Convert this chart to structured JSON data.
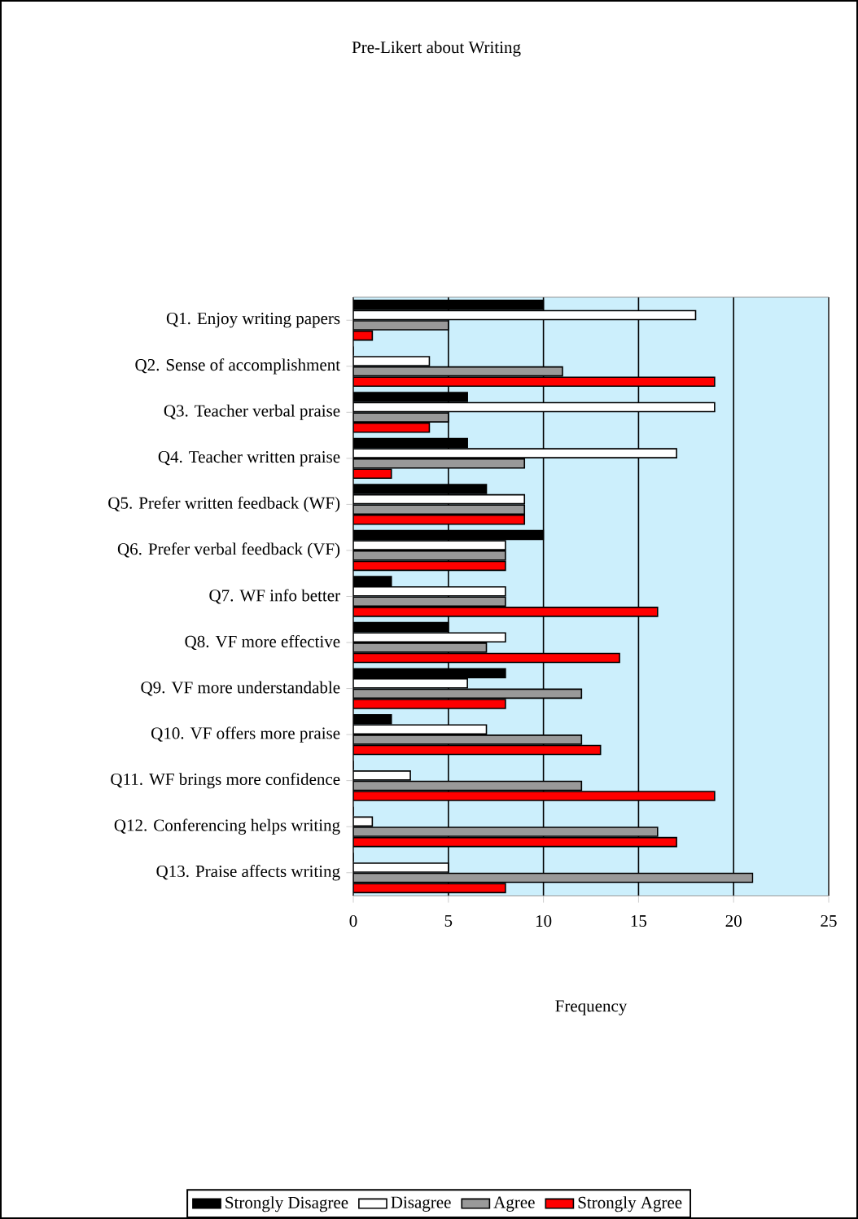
{
  "chart_data": {
    "type": "bar",
    "orientation": "horizontal",
    "title": "Pre-Likert about Writing",
    "xlabel": "Frequency",
    "categories": [
      "Q1. Enjoy writing papers",
      "Q2. Sense of accomplishment",
      "Q3. Teacher verbal praise",
      "Q4. Teacher written praise",
      "Q5. Prefer written feedback (WF)",
      "Q6. Prefer verbal feedback (VF)",
      "Q7. WF info better",
      "Q8. VF more effective",
      "Q9. VF more understandable",
      "Q10. VF offers more praise",
      "Q11. WF brings more confidence",
      "Q12. Conferencing helps writing",
      "Q13. Praise affects writing"
    ],
    "series": [
      {
        "name": "Strongly Disagree",
        "color": "#000000",
        "values": [
          10,
          0,
          6,
          6,
          7,
          10,
          2,
          5,
          8,
          2,
          0,
          0,
          0
        ]
      },
      {
        "name": "Disagree",
        "color": "#ffffff",
        "values": [
          18,
          4,
          19,
          17,
          9,
          8,
          8,
          8,
          6,
          7,
          3,
          1,
          5
        ]
      },
      {
        "name": "Agree",
        "color": "#999999",
        "values": [
          5,
          11,
          5,
          9,
          9,
          8,
          8,
          7,
          12,
          12,
          12,
          16,
          21
        ]
      },
      {
        "name": "Strongly Agree",
        "color": "#ff0000",
        "values": [
          1,
          19,
          4,
          2,
          9,
          8,
          16,
          14,
          8,
          13,
          19,
          17,
          8
        ]
      }
    ],
    "xlim": [
      0,
      25
    ],
    "xticks": [
      0,
      5,
      10,
      15,
      20,
      25
    ],
    "grid": "x",
    "legend": "bottom"
  }
}
